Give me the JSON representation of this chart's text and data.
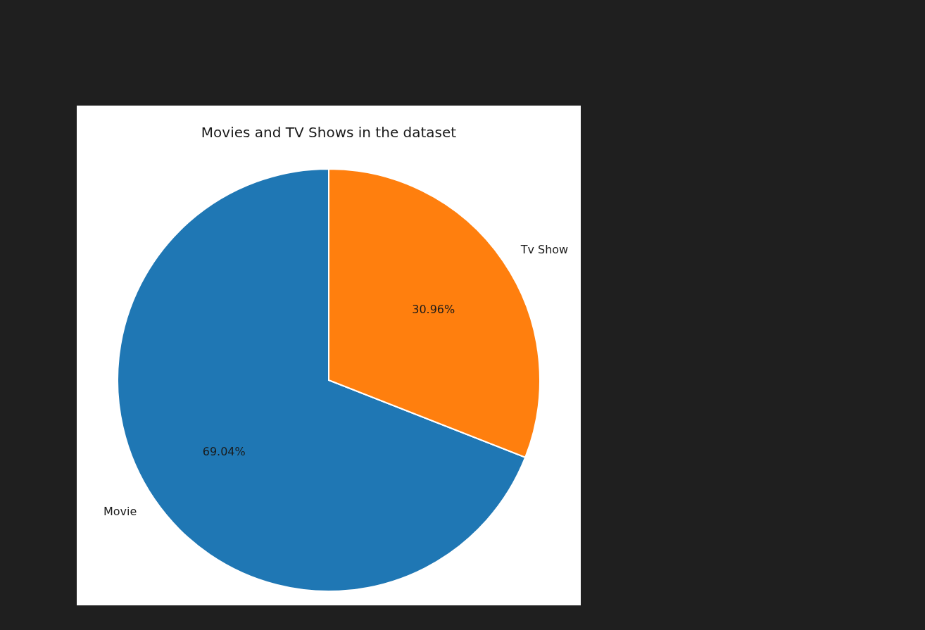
{
  "chart_data": {
    "type": "pie",
    "title": "Movies and TV Shows in the dataset",
    "categories": [
      "Movie",
      "Tv Show"
    ],
    "values": [
      69.04,
      30.96
    ],
    "colors": [
      "#1f77b4",
      "#ff7f0e"
    ],
    "value_labels": [
      "69.04%",
      "30.96%"
    ]
  }
}
